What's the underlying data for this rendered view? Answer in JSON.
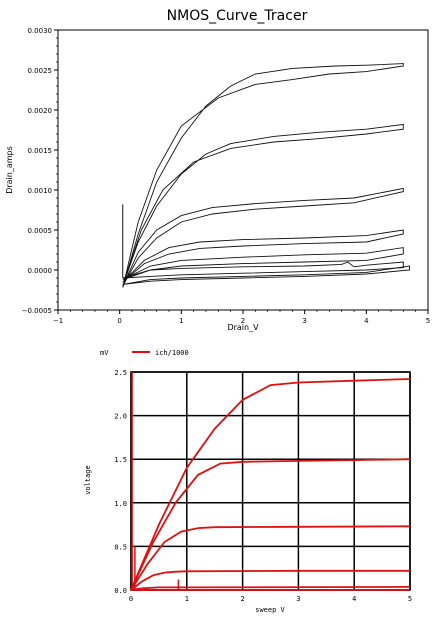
{
  "chart_data": [
    {
      "type": "line",
      "title": "NMOS_Curve_Tracer",
      "xlabel": "Drain_V",
      "ylabel": "Drain_amps",
      "xlim": [
        -1,
        5
      ],
      "ylim": [
        -0.0005,
        0.003
      ],
      "xticks": [
        "−1",
        "0",
        "1",
        "2",
        "3",
        "4",
        "5"
      ],
      "yticks": [
        "−0.0005",
        "0.0000",
        "0.0005",
        "0.0010",
        "0.0015",
        "0.0020",
        "0.0025",
        "0.0030"
      ],
      "grid": false,
      "series": [
        {
          "up": [
            [
              0.05,
              -0.00022
            ],
            [
              0.3,
              0.00045
            ],
            [
              0.6,
              0.0011
            ],
            [
              1.0,
              0.00165
            ],
            [
              1.4,
              0.00205
            ],
            [
              1.8,
              0.0023
            ],
            [
              2.2,
              0.00245
            ],
            [
              2.8,
              0.00252
            ],
            [
              3.5,
              0.00255
            ],
            [
              4.0,
              0.00256
            ],
            [
              4.6,
              0.00258
            ]
          ],
          "down": [
            [
              4.6,
              0.00255
            ],
            [
              4.0,
              0.00248
            ],
            [
              3.4,
              0.00245
            ],
            [
              2.8,
              0.00238
            ],
            [
              2.2,
              0.00232
            ],
            [
              1.6,
              0.00215
            ],
            [
              1.0,
              0.0018
            ],
            [
              0.6,
              0.00125
            ],
            [
              0.3,
              0.0006
            ],
            [
              0.05,
              -0.00022
            ]
          ]
        },
        {
          "up": [
            [
              0.05,
              -0.0002
            ],
            [
              0.3,
              0.00035
            ],
            [
              0.6,
              0.0008
            ],
            [
              1.0,
              0.0012
            ],
            [
              1.4,
              0.00145
            ],
            [
              1.8,
              0.00158
            ],
            [
              2.5,
              0.00167
            ],
            [
              3.2,
              0.00172
            ],
            [
              4.0,
              0.00176
            ],
            [
              4.6,
              0.00182
            ]
          ],
          "down": [
            [
              4.6,
              0.00176
            ],
            [
              4.0,
              0.0017
            ],
            [
              3.2,
              0.00164
            ],
            [
              2.5,
              0.0016
            ],
            [
              1.8,
              0.00152
            ],
            [
              1.2,
              0.00135
            ],
            [
              0.7,
              0.001
            ],
            [
              0.35,
              0.0005
            ],
            [
              0.05,
              -0.0002
            ]
          ]
        },
        {
          "up": [
            [
              0.05,
              -0.0002
            ],
            [
              0.3,
              0.00022
            ],
            [
              0.6,
              0.0005
            ],
            [
              1.0,
              0.00068
            ],
            [
              1.5,
              0.00078
            ],
            [
              2.2,
              0.00083
            ],
            [
              3.0,
              0.00087
            ],
            [
              3.8,
              0.0009
            ],
            [
              4.6,
              0.00102
            ]
          ],
          "down": [
            [
              4.6,
              0.00098
            ],
            [
              3.8,
              0.00084
            ],
            [
              3.0,
              0.0008
            ],
            [
              2.2,
              0.00076
            ],
            [
              1.5,
              0.0007
            ],
            [
              1.0,
              0.0006
            ],
            [
              0.6,
              0.0004
            ],
            [
              0.3,
              0.00015
            ],
            [
              0.05,
              -0.0002
            ]
          ]
        },
        {
          "up": [
            [
              0.05,
              -0.00015
            ],
            [
              0.4,
              0.00012
            ],
            [
              0.8,
              0.00028
            ],
            [
              1.3,
              0.00035
            ],
            [
              2.0,
              0.00038
            ],
            [
              3.0,
              0.0004
            ],
            [
              4.0,
              0.00043
            ],
            [
              4.6,
              0.0005
            ]
          ],
          "down": [
            [
              4.6,
              0.00045
            ],
            [
              4.0,
              0.00035
            ],
            [
              3.0,
              0.00033
            ],
            [
              2.0,
              0.0003
            ],
            [
              1.3,
              0.00027
            ],
            [
              0.8,
              0.0002
            ],
            [
              0.4,
              8e-05
            ],
            [
              0.05,
              -0.00015
            ]
          ]
        },
        {
          "up": [
            [
              0.05,
              -0.00012
            ],
            [
              0.5,
              5e-05
            ],
            [
              1.0,
              0.00012
            ],
            [
              2.0,
              0.00016
            ],
            [
              3.0,
              0.00019
            ],
            [
              4.0,
              0.00021
            ],
            [
              4.6,
              0.00028
            ]
          ],
          "down": [
            [
              4.6,
              0.0002
            ],
            [
              4.0,
              0.00012
            ],
            [
              3.0,
              0.0001
            ],
            [
              2.0,
              8e-05
            ],
            [
              1.0,
              5e-05
            ],
            [
              0.5,
              0.0
            ],
            [
              0.05,
              -0.00012
            ]
          ]
        },
        {
          "up": [
            [
              0.05,
              -0.0001
            ],
            [
              0.5,
              0.0
            ],
            [
              1.0,
              2e-05
            ],
            [
              2.0,
              4e-05
            ],
            [
              3.0,
              5e-05
            ],
            [
              3.6,
              7e-05
            ],
            [
              3.7,
              0.0001
            ],
            [
              3.8,
              4e-05
            ],
            [
              4.0,
              6e-05
            ],
            [
              4.6,
              0.0001
            ]
          ],
          "down": [
            [
              4.6,
              3e-05
            ],
            [
              4.0,
              0.0
            ],
            [
              3.0,
              -2e-05
            ],
            [
              2.0,
              -4e-05
            ],
            [
              1.0,
              -6e-05
            ],
            [
              0.5,
              -8e-05
            ],
            [
              0.05,
              -0.0001
            ]
          ]
        },
        {
          "up": [
            [
              0.05,
              -0.00018
            ],
            [
              0.5,
              -0.00012
            ],
            [
              1.0,
              -0.0001
            ],
            [
              2.0,
              -8e-05
            ],
            [
              3.0,
              -6e-05
            ],
            [
              4.0,
              -3e-05
            ],
            [
              4.7,
              5e-05
            ]
          ],
          "down": [
            [
              4.7,
              0.0
            ],
            [
              4.0,
              -5e-05
            ],
            [
              3.0,
              -8e-05
            ],
            [
              2.0,
              -0.0001
            ],
            [
              1.0,
              -0.00012
            ],
            [
              0.5,
              -0.00014
            ],
            [
              0.05,
              -0.00018
            ]
          ]
        }
      ],
      "spike": [
        [
          0.05,
          0.00082
        ],
        [
          0.05,
          -0.0001
        ]
      ]
    },
    {
      "type": "line",
      "title": "",
      "xlabel": "sweep V",
      "ylabel": "voltage",
      "yunit": "mV",
      "legend": "ich/1000",
      "legend_position": "top-left",
      "xlim": [
        0,
        5
      ],
      "ylim": [
        0,
        2.5
      ],
      "xticks": [
        "0",
        "1",
        "2",
        "3",
        "4",
        "5"
      ],
      "yticks": [
        "0.0",
        "0.5",
        "1.0",
        "1.5",
        "2.0",
        "2.5"
      ],
      "grid": true,
      "line_color": "#dd1111",
      "series_name": "ich/1000",
      "series": [
        [
          [
            0,
            0
          ],
          [
            0.5,
            0.75
          ],
          [
            1.0,
            1.4
          ],
          [
            1.5,
            1.85
          ],
          [
            2.0,
            2.18
          ],
          [
            2.5,
            2.35
          ],
          [
            3.0,
            2.38
          ],
          [
            4.0,
            2.4
          ],
          [
            5.0,
            2.42
          ]
        ],
        [
          [
            0,
            0
          ],
          [
            0.4,
            0.55
          ],
          [
            0.8,
            1.0
          ],
          [
            1.2,
            1.32
          ],
          [
            1.6,
            1.45
          ],
          [
            2.0,
            1.47
          ],
          [
            3.0,
            1.48
          ],
          [
            4.0,
            1.49
          ],
          [
            5.0,
            1.5
          ]
        ],
        [
          [
            0,
            0
          ],
          [
            0.3,
            0.3
          ],
          [
            0.6,
            0.55
          ],
          [
            0.9,
            0.67
          ],
          [
            1.2,
            0.71
          ],
          [
            1.5,
            0.72
          ],
          [
            3.0,
            0.725
          ],
          [
            5.0,
            0.73
          ]
        ],
        [
          [
            0,
            0
          ],
          [
            0.2,
            0.1
          ],
          [
            0.4,
            0.17
          ],
          [
            0.6,
            0.2
          ],
          [
            0.8,
            0.21
          ],
          [
            1.0,
            0.215
          ],
          [
            3.0,
            0.22
          ],
          [
            5.0,
            0.22
          ]
        ],
        [
          [
            0,
            0
          ],
          [
            0.2,
            0.02
          ],
          [
            0.5,
            0.03
          ],
          [
            1.0,
            0.03
          ],
          [
            5.0,
            0.035
          ]
        ],
        [
          [
            0,
            0
          ],
          [
            5.0,
            0.0
          ]
        ]
      ],
      "spikes": [
        [
          [
            0.02,
            0
          ],
          [
            0.02,
            2.5
          ]
        ],
        [
          [
            0.07,
            0
          ],
          [
            0.07,
            0.5
          ]
        ],
        [
          [
            0.85,
            0
          ],
          [
            0.85,
            0.12
          ]
        ]
      ]
    }
  ]
}
